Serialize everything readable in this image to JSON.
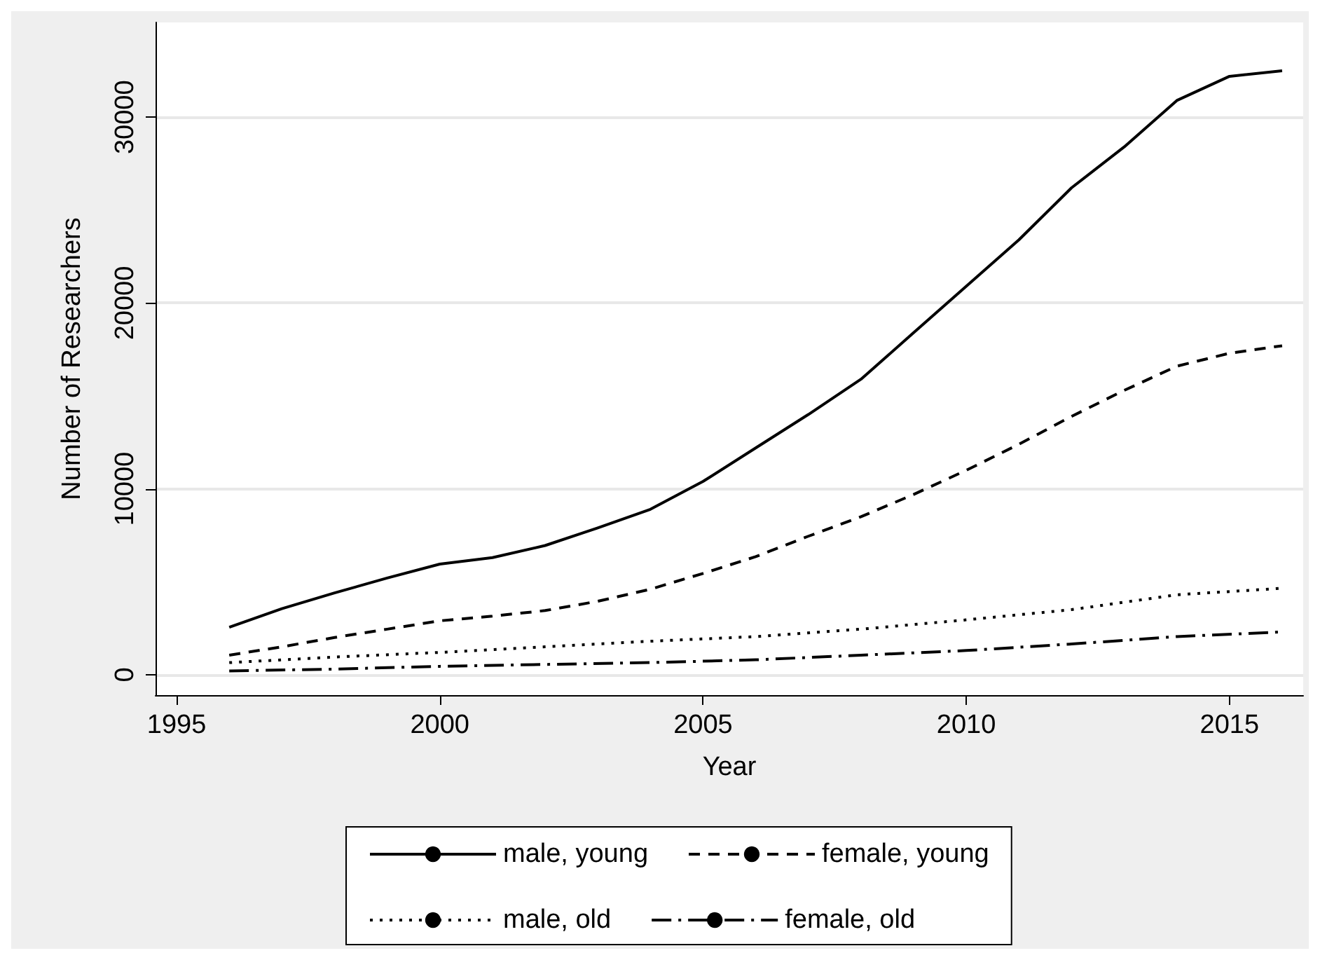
{
  "chart_data": {
    "type": "line",
    "xlabel": "Year",
    "ylabel": "Number of Researchers",
    "xlim": [
      1994.6,
      2016.4
    ],
    "xticks": [
      1995,
      2000,
      2005,
      2010,
      2015
    ],
    "ylim": [
      -1100,
      35100
    ],
    "yticks": [
      0,
      10000,
      20000,
      30000
    ],
    "grid": "y",
    "legend": "bottom",
    "marker": "none",
    "series": [
      {
        "name": "male, young",
        "color": "#000000",
        "line_style": "solid",
        "x": [
          1996,
          1997,
          1998,
          1999,
          2000,
          2001,
          2002,
          2003,
          2004,
          2005,
          2006,
          2007,
          2008,
          2009,
          2010,
          2011,
          2012,
          2013,
          2014,
          2015,
          2016
        ],
        "values": [
          2550,
          3550,
          4400,
          5200,
          5950,
          6300,
          6950,
          7900,
          8900,
          10400,
          12200,
          14000,
          15900,
          18400,
          20900,
          23400,
          26200,
          28400,
          30900,
          32200,
          32500
        ]
      },
      {
        "name": "female, young",
        "color": "#000000",
        "line_style": "dashed",
        "x": [
          1996,
          1997,
          1998,
          1999,
          2000,
          2001,
          2002,
          2003,
          2004,
          2005,
          2006,
          2007,
          2008,
          2009,
          2010,
          2011,
          2012,
          2013,
          2014,
          2015,
          2016
        ],
        "values": [
          1050,
          1500,
          2000,
          2450,
          2900,
          3150,
          3450,
          3950,
          4600,
          5450,
          6350,
          7450,
          8500,
          9700,
          11000,
          12400,
          13900,
          15300,
          16600,
          17300,
          17700
        ]
      },
      {
        "name": "male, old",
        "color": "#000000",
        "line_style": "dotted",
        "x": [
          1996,
          1998,
          2000,
          2002,
          2004,
          2006,
          2008,
          2010,
          2012,
          2014,
          2016
        ],
        "values": [
          650,
          950,
          1200,
          1500,
          1800,
          2050,
          2450,
          2950,
          3500,
          4300,
          4650
        ]
      },
      {
        "name": "female, old",
        "color": "#000000",
        "line_style": "dashdot",
        "x": [
          1996,
          1998,
          2000,
          2002,
          2004,
          2006,
          2008,
          2010,
          2012,
          2014,
          2016
        ],
        "values": [
          200,
          300,
          450,
          550,
          650,
          800,
          1050,
          1300,
          1650,
          2050,
          2300
        ]
      }
    ]
  }
}
